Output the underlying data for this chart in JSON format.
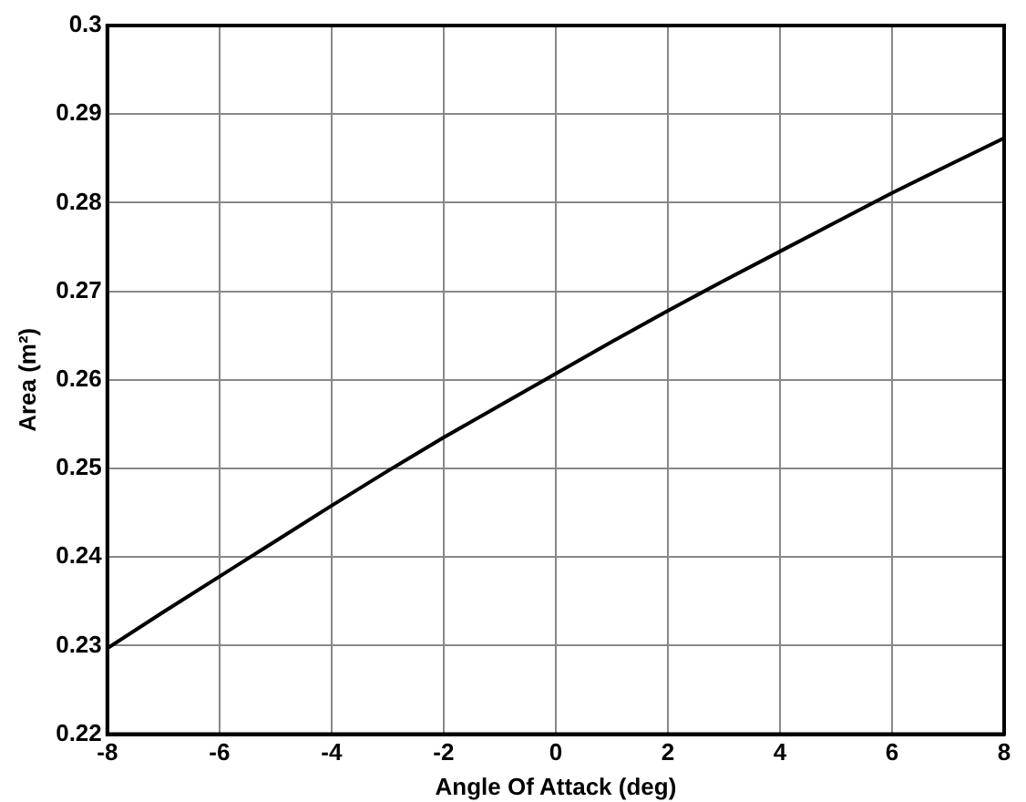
{
  "chart_data": {
    "type": "line",
    "xlabel": "Angle Of Attack (deg)",
    "ylabel": "Area (m²)",
    "x": [
      -8,
      -7,
      -6,
      -5,
      -4,
      -3,
      -2,
      -1,
      0,
      1,
      2,
      3,
      4,
      5,
      6,
      7,
      8
    ],
    "series": [
      {
        "color": "#000000",
        "values": [
          0.2297,
          0.2338,
          0.2378,
          0.2418,
          0.2458,
          0.2497,
          0.2535,
          0.2571,
          0.2607,
          0.2643,
          0.2678,
          0.2712,
          0.2745,
          0.2778,
          0.2811,
          0.2842,
          0.2873
        ]
      }
    ],
    "xlim": [
      -8,
      8
    ],
    "xticks": [
      -8,
      -6,
      -4,
      -2,
      0,
      2,
      4,
      6,
      8
    ],
    "ylim": [
      0.22,
      0.3
    ],
    "yticks": [
      0.22,
      0.23,
      0.24,
      0.25,
      0.26,
      0.27,
      0.28,
      0.29,
      0.3
    ],
    "grid": true,
    "legend": false,
    "marker": "none",
    "line_style": "solid"
  }
}
